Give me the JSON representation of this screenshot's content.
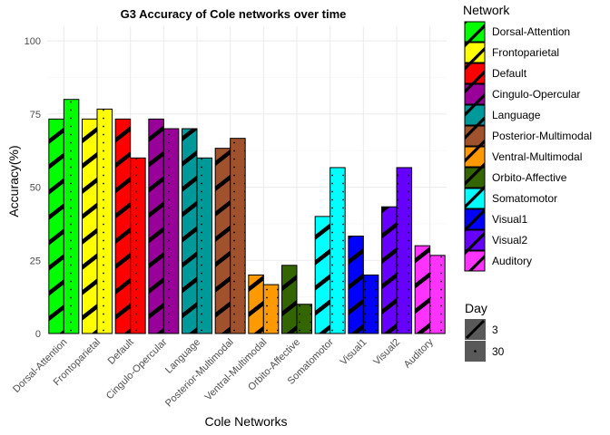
{
  "chart_data": {
    "type": "bar",
    "title": "G3 Accuracy of Cole networks over time",
    "xlabel": "Cole Networks",
    "ylabel": "Accuracy(%)",
    "ylim": [
      0,
      105
    ],
    "yticks": [
      0,
      25,
      50,
      75,
      100
    ],
    "grid": true,
    "categories": [
      "Dorsal-Attention",
      "Frontoparietal",
      "Default",
      "Cingulo-Opercular",
      "Language",
      "Posterior-Multimodal",
      "Ventral-Multimodal",
      "Orbito-Affective",
      "Somatomotor",
      "Visual1",
      "Visual2",
      "Auditory"
    ],
    "category_colors": [
      "#00ff00",
      "#ffff00",
      "#ff0000",
      "#990099",
      "#009999",
      "#a0522d",
      "#ff9900",
      "#336600",
      "#00ffff",
      "#0000ff",
      "#6600ff",
      "#ff33ff"
    ],
    "series": [
      {
        "name": "3",
        "pattern": "stripe",
        "values": [
          73.3,
          73.3,
          73.3,
          73.3,
          70.0,
          63.3,
          20.0,
          23.3,
          40.0,
          33.3,
          43.3,
          30.0
        ]
      },
      {
        "name": "30",
        "pattern": "dot",
        "values": [
          80.0,
          76.7,
          60.0,
          70.0,
          60.0,
          66.7,
          16.7,
          10.0,
          56.7,
          20.0,
          56.7,
          26.7
        ]
      }
    ],
    "legend_fill": {
      "title": "Network",
      "position": "right",
      "entries": [
        "Dorsal-Attention",
        "Frontoparietal",
        "Default",
        "Cingulo-Opercular",
        "Language",
        "Posterior-Multimodal",
        "Ventral-Multimodal",
        "Orbito-Affective",
        "Somatomotor",
        "Visual1",
        "Visual2",
        "Auditory"
      ]
    },
    "legend_pattern": {
      "title": "Day",
      "position": "right",
      "entries": [
        "3",
        "30"
      ]
    }
  }
}
